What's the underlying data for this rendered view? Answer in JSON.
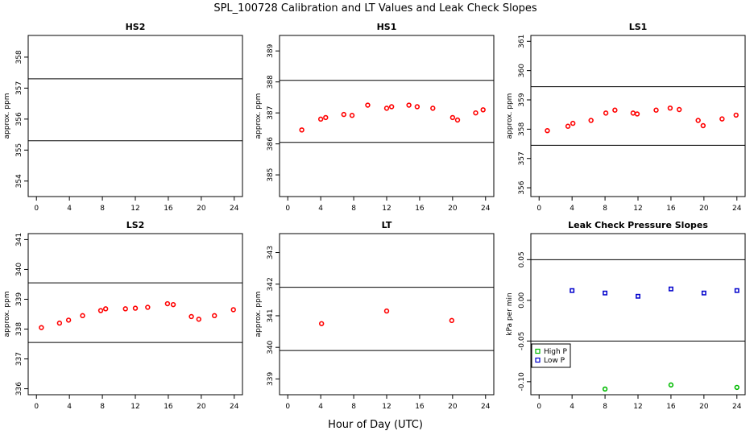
{
  "title": "SPL_100728  Calibration and LT Values and Leak Check Slopes",
  "xlabel": "Hour of Day (UTC)",
  "colors": {
    "points": "#ff0000",
    "high_p": "#00bb00",
    "low_p": "#0000cc",
    "axis": "#000000"
  },
  "chart_data": [
    {
      "id": "hs2",
      "type": "scatter",
      "title": "HS2",
      "ylabel": "approx. ppm",
      "xlim": [
        -1,
        25
      ],
      "ylim": [
        353.5,
        358.7
      ],
      "xticks": [
        0,
        4,
        8,
        12,
        16,
        20,
        24
      ],
      "yticks": [
        354,
        355,
        356,
        357,
        358
      ],
      "hlines": [
        355.3,
        357.3
      ],
      "series": []
    },
    {
      "id": "hs1",
      "type": "scatter",
      "title": "HS1",
      "ylabel": "approx. ppm",
      "xlim": [
        -1,
        25
      ],
      "ylim": [
        384.3,
        389.5
      ],
      "xticks": [
        0,
        4,
        8,
        12,
        16,
        20,
        24
      ],
      "yticks": [
        385,
        386,
        387,
        388,
        389
      ],
      "hlines": [
        386.05,
        388.05
      ],
      "series": [
        {
          "x": [
            1.7,
            4.0,
            4.6,
            6.8,
            7.8,
            9.7,
            12.0,
            12.6,
            14.7,
            15.7,
            17.6,
            20.0,
            20.6,
            22.8,
            23.7
          ],
          "y": [
            386.45,
            386.8,
            386.85,
            386.95,
            386.92,
            387.25,
            387.15,
            387.2,
            387.25,
            387.2,
            387.15,
            386.85,
            386.77,
            387.0,
            387.1
          ]
        }
      ]
    },
    {
      "id": "ls1",
      "type": "scatter",
      "title": "LS1",
      "ylabel": "approx. ppm",
      "xlim": [
        -1,
        25
      ],
      "ylim": [
        355.7,
        361.2
      ],
      "xticks": [
        0,
        4,
        8,
        12,
        16,
        20,
        24
      ],
      "yticks": [
        356,
        357,
        358,
        359,
        360,
        361
      ],
      "hlines": [
        357.45,
        359.45
      ],
      "series": [
        {
          "x": [
            1.0,
            3.5,
            4.1,
            6.3,
            8.1,
            9.2,
            11.4,
            11.9,
            14.2,
            15.9,
            17.0,
            19.3,
            19.9,
            22.2,
            23.9
          ],
          "y": [
            357.95,
            358.1,
            358.2,
            358.3,
            358.55,
            358.65,
            358.55,
            358.52,
            358.65,
            358.72,
            358.67,
            358.3,
            358.12,
            358.35,
            358.48
          ]
        }
      ]
    },
    {
      "id": "ls2",
      "type": "scatter",
      "title": "LS2",
      "ylabel": "approx. ppm",
      "xlim": [
        -1,
        25
      ],
      "ylim": [
        335.8,
        341.2
      ],
      "xticks": [
        0,
        4,
        8,
        12,
        16,
        20,
        24
      ],
      "yticks": [
        336,
        337,
        338,
        339,
        340,
        341
      ],
      "hlines": [
        337.55,
        339.55
      ],
      "series": [
        {
          "x": [
            0.6,
            2.8,
            3.9,
            5.6,
            7.8,
            8.4,
            10.8,
            12.0,
            13.5,
            15.9,
            16.6,
            18.8,
            19.7,
            21.6,
            23.9
          ],
          "y": [
            338.05,
            338.2,
            338.3,
            338.45,
            338.62,
            338.68,
            338.68,
            338.7,
            338.73,
            338.85,
            338.82,
            338.42,
            338.33,
            338.45,
            338.65
          ]
        }
      ]
    },
    {
      "id": "lt",
      "type": "scatter",
      "title": "LT",
      "ylabel": "approx. ppm",
      "xlim": [
        -1,
        25
      ],
      "ylim": [
        338.5,
        343.6
      ],
      "xticks": [
        0,
        4,
        8,
        12,
        16,
        20,
        24
      ],
      "yticks": [
        339,
        340,
        341,
        342,
        343
      ],
      "hlines": [
        339.9,
        341.9
      ],
      "series": [
        {
          "x": [
            4.1,
            12.0,
            19.9
          ],
          "y": [
            340.75,
            341.15,
            340.85
          ]
        }
      ]
    },
    {
      "id": "leak",
      "type": "scatter",
      "title": "Leak Check Pressure Slopes",
      "ylabel": "kPa per min",
      "xlim": [
        -1,
        25
      ],
      "ylim": [
        -0.116,
        0.082
      ],
      "xticks": [
        0,
        4,
        8,
        12,
        16,
        20,
        24
      ],
      "yticks": [
        -0.1,
        -0.05,
        0.0,
        0.05
      ],
      "ytick_labels": [
        "-0.10",
        "-0.05",
        "0.00",
        "0.05"
      ],
      "hlines": [
        0.05,
        -0.05
      ],
      "legend": {
        "position": "bottom-left",
        "entries": [
          "High P",
          "Low P"
        ]
      },
      "series": [
        {
          "name": "High P",
          "x": [
            8,
            16,
            24
          ],
          "y": [
            -0.109,
            -0.104,
            -0.107
          ]
        },
        {
          "name": "Low P",
          "x": [
            4,
            8,
            12,
            16,
            20,
            24
          ],
          "y": [
            0.012,
            0.009,
            0.005,
            0.014,
            0.009,
            0.012
          ]
        }
      ]
    }
  ]
}
